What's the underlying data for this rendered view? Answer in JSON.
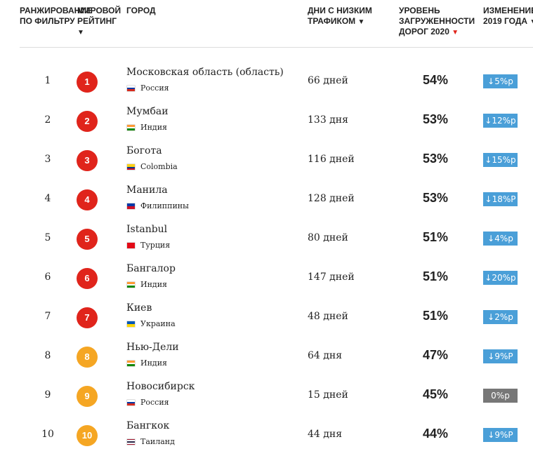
{
  "header": [
    {
      "label": "РАНЖИРОВАНИЕ ПО ФИЛЬТРУ"
    },
    {
      "label": "МИРОВОЙ РЕЙТИНГ",
      "arrow": "▼"
    },
    {
      "label": "ГОРОД"
    },
    {
      "label": "ДНИ С НИЗКИМ ТРАФИКОМ",
      "arrow": "▼"
    },
    {
      "label": "УРОВЕНЬ ЗАГРУЖЕННОСТИ ДОРОГ 2020",
      "arrow": "▼",
      "arrow_color": "#e0241b"
    },
    {
      "label": "ИЗМЕНЕНИЕ 2019 ГОДА",
      "arrow": "▼"
    }
  ],
  "rows": [
    {
      "rank": "1",
      "world_rank": "1",
      "rank_color": "#e0241b",
      "city": "Московская область (область)",
      "country": "Россия",
      "flag": [
        "#ffffff",
        "#0039a6",
        "#d52b1e"
      ],
      "days": "66 дней",
      "congestion": "54%",
      "change": "↓5%р",
      "change_color": "#4a9fd8"
    },
    {
      "rank": "2",
      "world_rank": "2",
      "rank_color": "#e0241b",
      "city": "Мумбаи",
      "country": "Индия",
      "flag": [
        "#ff9933",
        "#ffffff",
        "#138808"
      ],
      "days": "133 дня",
      "congestion": "53%",
      "change": "↓12%р",
      "change_color": "#4a9fd8"
    },
    {
      "rank": "3",
      "world_rank": "3",
      "rank_color": "#e0241b",
      "city": "Богота",
      "country": "Colombia",
      "flag": [
        "#fcd116",
        "#fcd116",
        "#003893",
        "#ce1126"
      ],
      "days": "116 дней",
      "congestion": "53%",
      "change": "↓15%р",
      "change_color": "#4a9fd8"
    },
    {
      "rank": "4",
      "world_rank": "4",
      "rank_color": "#e0241b",
      "city": "Манила",
      "country": "Филиппины",
      "flag": [
        "#0038a8",
        "#ce1126"
      ],
      "days": "128 дней",
      "congestion": "53%",
      "change": "↓18%Р",
      "change_color": "#4a9fd8"
    },
    {
      "rank": "5",
      "world_rank": "5",
      "rank_color": "#e0241b",
      "city": "Istanbul",
      "country": "Турция",
      "flag": [
        "#e30a17"
      ],
      "days": "80 дней",
      "congestion": "51%",
      "change": "↓4%р",
      "change_color": "#4a9fd8"
    },
    {
      "rank": "6",
      "world_rank": "6",
      "rank_color": "#e0241b",
      "city": "Бангалор",
      "country": "Индия",
      "flag": [
        "#ff9933",
        "#ffffff",
        "#138808"
      ],
      "days": "147 дней",
      "congestion": "51%",
      "change": "↓20%р",
      "change_color": "#4a9fd8"
    },
    {
      "rank": "7",
      "world_rank": "7",
      "rank_color": "#e0241b",
      "city": "Киев",
      "country": "Украина",
      "flag": [
        "#0057b7",
        "#ffd700"
      ],
      "days": "48 дней",
      "congestion": "51%",
      "change": "↓2%р",
      "change_color": "#4a9fd8"
    },
    {
      "rank": "8",
      "world_rank": "8",
      "rank_color": "#f5a623",
      "city": "Нью-Дели",
      "country": "Индия",
      "flag": [
        "#ff9933",
        "#ffffff",
        "#138808"
      ],
      "days": "64 дня",
      "congestion": "47%",
      "change": "↓9%Р",
      "change_color": "#4a9fd8"
    },
    {
      "rank": "9",
      "world_rank": "9",
      "rank_color": "#f5a623",
      "city": "Новосибирск",
      "country": "Россия",
      "flag": [
        "#ffffff",
        "#0039a6",
        "#d52b1e"
      ],
      "days": "15 дней",
      "congestion": "45%",
      "change": "0%р",
      "change_color": "#777777"
    },
    {
      "rank": "10",
      "world_rank": "10",
      "rank_color": "#f5a623",
      "city": "Бангкок",
      "country": "Таиланд",
      "flag": [
        "#a51931",
        "#f4f5f8",
        "#2d2a4a",
        "#2d2a4a",
        "#f4f5f8",
        "#a51931"
      ],
      "days": "44 дня",
      "congestion": "44%",
      "change": "↓9%Р",
      "change_color": "#4a9fd8"
    }
  ]
}
